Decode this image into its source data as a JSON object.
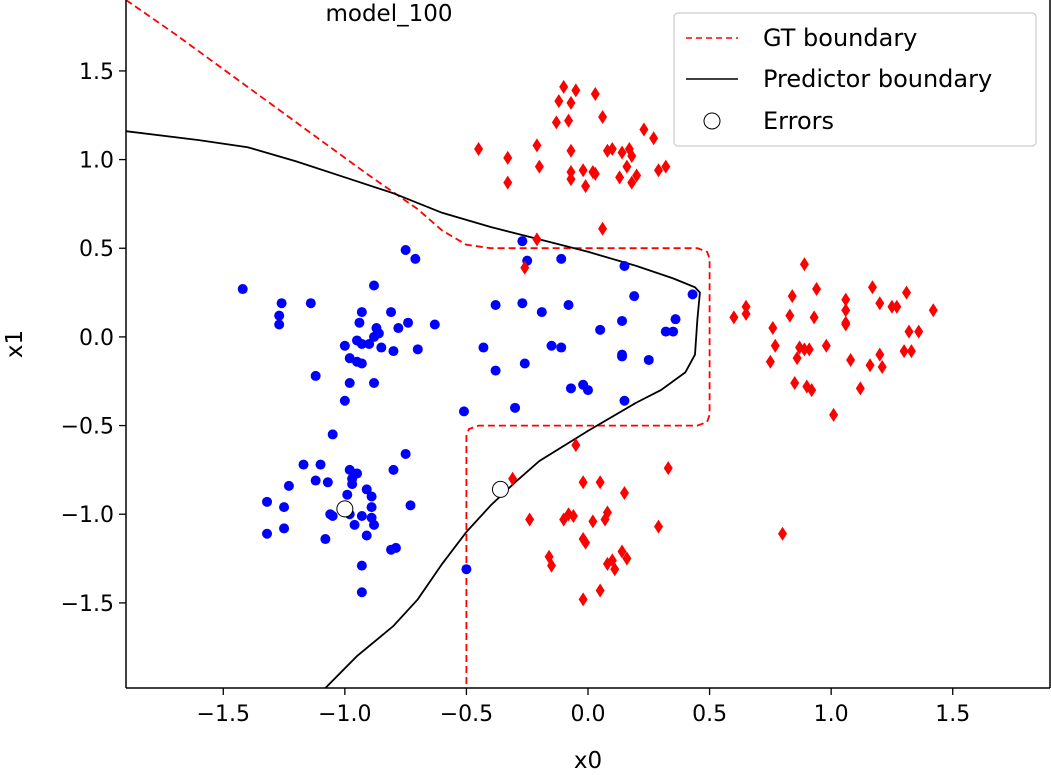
{
  "chart_data": {
    "type": "scatter",
    "title": "model_100",
    "xlabel": "x0",
    "ylabel": "x1",
    "xlim": [
      -1.9,
      1.9
    ],
    "ylim": [
      -1.98,
      1.9
    ],
    "xticks": [
      -1.5,
      -1.0,
      -0.5,
      0.0,
      0.5,
      1.0,
      1.5
    ],
    "xtick_labels": [
      "−1.5",
      "−1.0",
      "−0.5",
      "0.0",
      "0.5",
      "1.0",
      "1.5"
    ],
    "yticks": [
      -1.5,
      -1.0,
      -0.5,
      0.0,
      0.5,
      1.0,
      1.5
    ],
    "ytick_labels": [
      "−1.5",
      "−1.0",
      "−0.5",
      "0.0",
      "0.5",
      "1.0",
      "1.5"
    ],
    "grid": false,
    "legend_position": "top-right",
    "legend": [
      {
        "label": "GT boundary",
        "style": "dashed-line",
        "color": "#ff0000"
      },
      {
        "label": "Predictor boundary",
        "style": "solid-line",
        "color": "#000000"
      },
      {
        "label": "Errors",
        "style": "open-circle",
        "color": "#000000"
      }
    ],
    "colors": {
      "class0": "#0000ff",
      "class1": "#ff0000",
      "predictor": "#000000",
      "gt": "#ff0000"
    },
    "class0_points": [
      [
        -1.42,
        0.27
      ],
      [
        -1.26,
        0.19
      ],
      [
        -1.27,
        0.12
      ],
      [
        -1.27,
        0.07
      ],
      [
        -1.14,
        0.19
      ],
      [
        -0.93,
        0.14
      ],
      [
        -0.94,
        0.08
      ],
      [
        -0.88,
        0.29
      ],
      [
        -0.81,
        0.14
      ],
      [
        -0.75,
        0.49
      ],
      [
        -0.71,
        0.44
      ],
      [
        -0.63,
        0.07
      ],
      [
        -0.78,
        0.05
      ],
      [
        -0.74,
        0.08
      ],
      [
        -0.86,
        0.02
      ],
      [
        -0.87,
        0.05
      ],
      [
        -0.88,
        0.0
      ],
      [
        -0.95,
        -0.02
      ],
      [
        -0.93,
        -0.04
      ],
      [
        -1.0,
        -0.05
      ],
      [
        -0.9,
        -0.04
      ],
      [
        -0.85,
        -0.06
      ],
      [
        -0.8,
        -0.08
      ],
      [
        -0.7,
        -0.07
      ],
      [
        -0.98,
        -0.12
      ],
      [
        -0.95,
        -0.14
      ],
      [
        -0.93,
        -0.15
      ],
      [
        -1.12,
        -0.22
      ],
      [
        -0.98,
        -0.26
      ],
      [
        -0.88,
        -0.26
      ],
      [
        -1.0,
        -0.36
      ],
      [
        -1.05,
        -0.55
      ],
      [
        -1.17,
        -0.72
      ],
      [
        -1.1,
        -0.72
      ],
      [
        -0.98,
        -0.75
      ],
      [
        -0.95,
        -0.77
      ],
      [
        -0.8,
        -0.75
      ],
      [
        -0.75,
        -0.66
      ],
      [
        -1.23,
        -0.84
      ],
      [
        -1.12,
        -0.81
      ],
      [
        -1.07,
        -0.82
      ],
      [
        -0.97,
        -0.8
      ],
      [
        -0.97,
        -0.83
      ],
      [
        -0.99,
        -0.89
      ],
      [
        -0.91,
        -0.86
      ],
      [
        -0.89,
        -0.9
      ],
      [
        -1.32,
        -0.93
      ],
      [
        -1.25,
        -0.96
      ],
      [
        -1.06,
        -1.0
      ],
      [
        -1.05,
        -1.01
      ],
      [
        -0.98,
        -1.0
      ],
      [
        -0.93,
        -1.01
      ],
      [
        -0.89,
        -0.96
      ],
      [
        -0.89,
        -1.02
      ],
      [
        -0.88,
        -1.06
      ],
      [
        -0.96,
        -1.06
      ],
      [
        -1.25,
        -1.08
      ],
      [
        -1.32,
        -1.11
      ],
      [
        -1.08,
        -1.14
      ],
      [
        -0.91,
        -1.12
      ],
      [
        -0.81,
        -1.2
      ],
      [
        -0.79,
        -1.19
      ],
      [
        -0.93,
        -1.29
      ],
      [
        -0.93,
        -1.44
      ],
      [
        -0.73,
        -0.95
      ],
      [
        -0.5,
        -1.31
      ],
      [
        -0.51,
        -0.42
      ],
      [
        -0.38,
        -0.19
      ],
      [
        -0.3,
        -0.4
      ],
      [
        -0.27,
        0.54
      ],
      [
        -0.25,
        0.43
      ],
      [
        -0.11,
        0.44
      ],
      [
        -0.38,
        0.18
      ],
      [
        -0.27,
        0.19
      ],
      [
        -0.19,
        0.14
      ],
      [
        -0.08,
        0.18
      ],
      [
        0.05,
        0.04
      ],
      [
        0.14,
        0.09
      ],
      [
        0.15,
        0.4
      ],
      [
        0.19,
        0.23
      ],
      [
        -0.43,
        -0.06
      ],
      [
        -0.26,
        -0.15
      ],
      [
        -0.15,
        -0.05
      ],
      [
        -0.11,
        -0.06
      ],
      [
        -0.07,
        -0.29
      ],
      [
        -0.02,
        -0.27
      ],
      [
        0.0,
        -0.3
      ],
      [
        0.14,
        -0.1
      ],
      [
        0.14,
        -0.11
      ],
      [
        0.15,
        -0.36
      ],
      [
        0.25,
        -0.13
      ],
      [
        0.32,
        0.03
      ],
      [
        0.35,
        0.03
      ],
      [
        0.36,
        0.1
      ],
      [
        0.43,
        0.24
      ]
    ],
    "class1_points": [
      [
        -0.1,
        1.41
      ],
      [
        -0.05,
        1.39
      ],
      [
        -0.12,
        1.33
      ],
      [
        -0.07,
        1.32
      ],
      [
        0.03,
        1.37
      ],
      [
        0.06,
        1.24
      ],
      [
        -0.13,
        1.21
      ],
      [
        -0.08,
        1.22
      ],
      [
        0.23,
        1.17
      ],
      [
        0.27,
        1.12
      ],
      [
        0.18,
        1.02
      ],
      [
        0.17,
        1.06
      ],
      [
        0.14,
        1.04
      ],
      [
        0.1,
        1.06
      ],
      [
        0.08,
        1.05
      ],
      [
        -0.45,
        1.06
      ],
      [
        -0.33,
        1.01
      ],
      [
        -0.21,
        1.08
      ],
      [
        -0.2,
        0.96
      ],
      [
        -0.07,
        1.05
      ],
      [
        -0.07,
        0.93
      ],
      [
        -0.02,
        0.94
      ],
      [
        0.02,
        0.93
      ],
      [
        0.03,
        0.92
      ],
      [
        -0.07,
        0.89
      ],
      [
        -0.01,
        0.85
      ],
      [
        0.16,
        0.96
      ],
      [
        0.13,
        0.9
      ],
      [
        0.18,
        0.87
      ],
      [
        0.2,
        0.91
      ],
      [
        0.29,
        0.94
      ],
      [
        0.32,
        0.96
      ],
      [
        -0.33,
        0.87
      ],
      [
        0.06,
        0.61
      ],
      [
        -0.21,
        0.55
      ],
      [
        -0.26,
        0.39
      ],
      [
        0.6,
        0.11
      ],
      [
        0.65,
        0.17
      ],
      [
        0.65,
        0.13
      ],
      [
        0.84,
        0.23
      ],
      [
        0.89,
        0.41
      ],
      [
        0.94,
        0.27
      ],
      [
        0.76,
        0.05
      ],
      [
        0.77,
        -0.05
      ],
      [
        0.75,
        -0.14
      ],
      [
        0.86,
        -0.12
      ],
      [
        0.87,
        -0.06
      ],
      [
        0.89,
        -0.07
      ],
      [
        0.91,
        -0.07
      ],
      [
        0.93,
        0.11
      ],
      [
        0.98,
        -0.05
      ],
      [
        0.85,
        -0.26
      ],
      [
        0.9,
        -0.28
      ],
      [
        0.92,
        -0.3
      ],
      [
        1.01,
        -0.44
      ],
      [
        1.06,
        0.07
      ],
      [
        1.06,
        0.15
      ],
      [
        1.08,
        -0.13
      ],
      [
        1.12,
        -0.29
      ],
      [
        1.17,
        0.28
      ],
      [
        1.2,
        0.19
      ],
      [
        1.2,
        -0.1
      ],
      [
        1.21,
        -0.17
      ],
      [
        1.25,
        0.17
      ],
      [
        1.27,
        0.17
      ],
      [
        1.31,
        0.25
      ],
      [
        1.3,
        -0.08
      ],
      [
        1.32,
        0.03
      ],
      [
        1.33,
        -0.08
      ],
      [
        1.36,
        0.03
      ],
      [
        1.42,
        0.15
      ],
      [
        1.06,
        0.21
      ],
      [
        1.16,
        -0.16
      ],
      [
        1.06,
        0.08
      ],
      [
        0.83,
        0.12
      ],
      [
        -0.05,
        -0.61
      ],
      [
        -0.31,
        -0.8
      ],
      [
        -0.24,
        -1.03
      ],
      [
        -0.16,
        -1.24
      ],
      [
        -0.15,
        -1.29
      ],
      [
        -0.1,
        -1.03
      ],
      [
        -0.08,
        -1.0
      ],
      [
        -0.06,
        -1.01
      ],
      [
        -0.02,
        -0.82
      ],
      [
        -0.02,
        -1.14
      ],
      [
        -0.01,
        -1.16
      ],
      [
        -0.02,
        -1.48
      ],
      [
        0.02,
        -1.04
      ],
      [
        0.05,
        -0.82
      ],
      [
        0.07,
        -1.03
      ],
      [
        0.08,
        -0.99
      ],
      [
        0.05,
        -1.43
      ],
      [
        0.08,
        -1.28
      ],
      [
        0.1,
        -1.26
      ],
      [
        0.11,
        -1.31
      ],
      [
        0.14,
        -1.21
      ],
      [
        0.16,
        -1.25
      ],
      [
        0.15,
        -0.88
      ],
      [
        0.29,
        -1.07
      ],
      [
        0.33,
        -0.74
      ],
      [
        0.8,
        -1.11
      ]
    ],
    "error_points": [
      [
        -1.0,
        -0.97
      ],
      [
        -0.36,
        -0.86
      ]
    ],
    "predictor_boundary": [
      [
        -1.9,
        1.16
      ],
      [
        -1.6,
        1.11
      ],
      [
        -1.4,
        1.07
      ],
      [
        -1.2,
        0.99
      ],
      [
        -1.0,
        0.9
      ],
      [
        -0.8,
        0.81
      ],
      [
        -0.6,
        0.7
      ],
      [
        -0.4,
        0.62
      ],
      [
        -0.2,
        0.55
      ],
      [
        0.0,
        0.48
      ],
      [
        0.2,
        0.4
      ],
      [
        0.35,
        0.33
      ],
      [
        0.44,
        0.28
      ],
      [
        0.46,
        0.25
      ],
      [
        0.45,
        0.1
      ],
      [
        0.44,
        -0.1
      ],
      [
        0.4,
        -0.2
      ],
      [
        0.3,
        -0.3
      ],
      [
        0.2,
        -0.37
      ],
      [
        0.0,
        -0.53
      ],
      [
        -0.2,
        -0.7
      ],
      [
        -0.3,
        -0.82
      ],
      [
        -0.4,
        -0.95
      ],
      [
        -0.5,
        -1.1
      ],
      [
        -0.6,
        -1.28
      ],
      [
        -0.7,
        -1.48
      ],
      [
        -0.8,
        -1.63
      ],
      [
        -0.95,
        -1.8
      ],
      [
        -1.08,
        -1.98
      ]
    ],
    "gt_boundary": [
      [
        -1.9,
        1.9
      ],
      [
        -1.7,
        1.71
      ],
      [
        -1.5,
        1.51
      ],
      [
        -1.3,
        1.31
      ],
      [
        -1.1,
        1.11
      ],
      [
        -0.9,
        0.91
      ],
      [
        -0.7,
        0.72
      ],
      [
        -0.6,
        0.6
      ],
      [
        -0.5,
        0.52
      ],
      [
        -0.4,
        0.5
      ],
      [
        0.0,
        0.5
      ],
      [
        0.45,
        0.5
      ],
      [
        0.49,
        0.48
      ],
      [
        0.5,
        0.44
      ],
      [
        0.5,
        -0.44
      ],
      [
        0.49,
        -0.48
      ],
      [
        0.45,
        -0.5
      ],
      [
        -0.45,
        -0.5
      ],
      [
        -0.49,
        -0.52
      ],
      [
        -0.5,
        -0.56
      ],
      [
        -0.5,
        -1.98
      ]
    ]
  }
}
